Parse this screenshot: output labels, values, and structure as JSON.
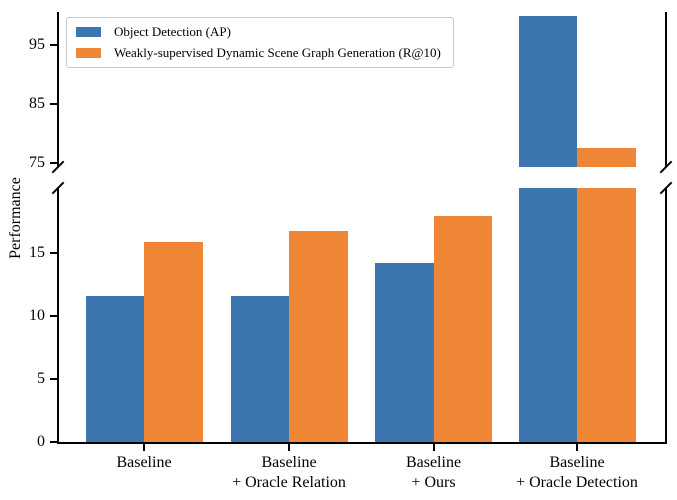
{
  "chart_data": {
    "type": "bar",
    "title": "",
    "xlabel": "",
    "ylabel": "Performance",
    "grid": false,
    "legend_position": "upper left",
    "background": "#ffffff",
    "axis_color": "#000000",
    "categories": [
      {
        "lines": [
          "Baseline"
        ]
      },
      {
        "lines": [
          "Baseline",
          "+ Oracle Relation"
        ]
      },
      {
        "lines": [
          "Baseline",
          "+ Ours"
        ]
      },
      {
        "lines": [
          "Baseline",
          "+ Oracle Detection"
        ]
      }
    ],
    "series": [
      {
        "name": "Object Detection (AP)",
        "color": "#3b76af",
        "values": [
          11.6,
          11.6,
          14.2,
          100.0
        ]
      },
      {
        "name": "Weakly-supervised Dynamic Scene Graph Generation (R@10)",
        "color": "#ee8636",
        "values": [
          15.9,
          16.8,
          18.0,
          77.5
        ]
      }
    ],
    "broken_y_axis": {
      "top": {
        "ylim": [
          74.3,
          100.6
        ],
        "yticks": [
          95,
          85,
          75
        ]
      },
      "bottom": {
        "ylim": [
          0,
          20.2
        ],
        "yticks": [
          15,
          10,
          5,
          0
        ]
      }
    }
  }
}
